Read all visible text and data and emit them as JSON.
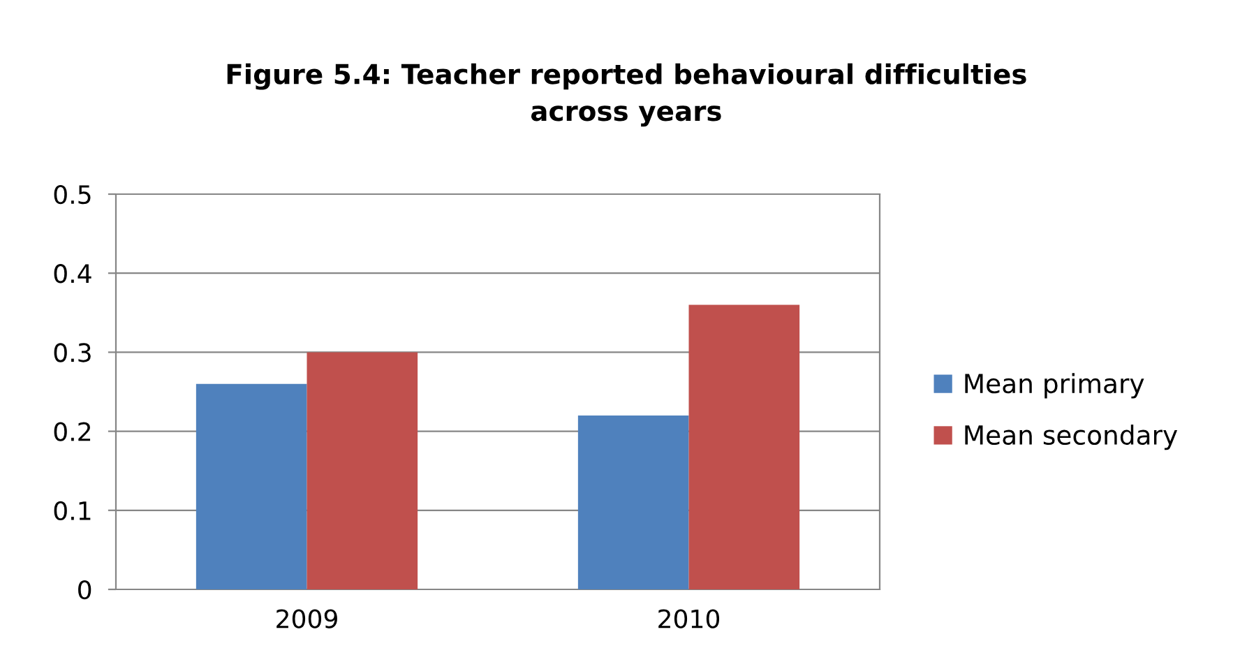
{
  "chart_data": {
    "type": "bar",
    "title": "Figure 5.4: Teacher reported behavioural difficulties\nacross years",
    "categories": [
      "2009",
      "2010"
    ],
    "series": [
      {
        "name": "Mean primary",
        "color": "#4f81bd",
        "values": [
          0.26,
          0.22
        ]
      },
      {
        "name": "Mean secondary",
        "color": "#c0504d",
        "values": [
          0.3,
          0.36
        ]
      }
    ],
    "ylim": [
      0,
      0.5
    ],
    "yticks": [
      {
        "value": 0,
        "label": "0"
      },
      0.1,
      0.2,
      0.3,
      0.4,
      0.5
    ],
    "grid": "y",
    "legend": "right"
  }
}
